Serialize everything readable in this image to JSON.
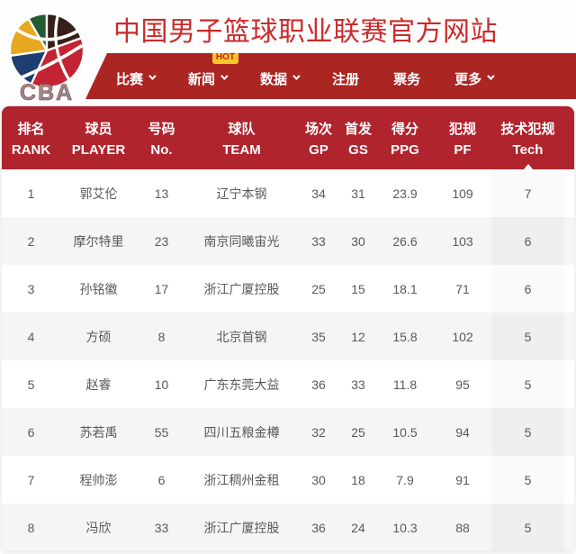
{
  "header": {
    "logo_text": "CBA",
    "title": "中国男子篮球职业联赛官方网站"
  },
  "nav": {
    "items": [
      {
        "label": "比赛",
        "has_dropdown": true
      },
      {
        "label": "新闻",
        "has_dropdown": true,
        "badge": "HOT"
      },
      {
        "label": "数据",
        "has_dropdown": true
      },
      {
        "label": "注册",
        "has_dropdown": false
      },
      {
        "label": "票务",
        "has_dropdown": false
      },
      {
        "label": "更多",
        "has_dropdown": true
      }
    ]
  },
  "table": {
    "columns": [
      {
        "zh": "排名",
        "en": "RANK",
        "key": "rank",
        "sorted": false
      },
      {
        "zh": "球员",
        "en": "PLAYER",
        "key": "player",
        "sorted": false
      },
      {
        "zh": "号码",
        "en": "No.",
        "key": "no",
        "sorted": false
      },
      {
        "zh": "球队",
        "en": "TEAM",
        "key": "team",
        "sorted": false
      },
      {
        "zh": "场次",
        "en": "GP",
        "key": "gp",
        "sorted": false
      },
      {
        "zh": "首发",
        "en": "GS",
        "key": "gs",
        "sorted": false
      },
      {
        "zh": "得分",
        "en": "PPG",
        "key": "ppg",
        "sorted": false
      },
      {
        "zh": "犯规",
        "en": "PF",
        "key": "pf",
        "sorted": false
      },
      {
        "zh": "技术犯规",
        "en": "Tech",
        "key": "tech",
        "sorted": true
      }
    ],
    "rows": [
      [
        "1",
        "郭艾伦",
        "13",
        "辽宁本钢",
        "34",
        "31",
        "23.9",
        "109",
        "7"
      ],
      [
        "2",
        "摩尔特里",
        "23",
        "南京同曦宙光",
        "33",
        "30",
        "26.6",
        "103",
        "6"
      ],
      [
        "3",
        "孙铭徽",
        "17",
        "浙江广厦控股",
        "25",
        "15",
        "18.1",
        "71",
        "6"
      ],
      [
        "4",
        "方硕",
        "8",
        "北京首钢",
        "35",
        "12",
        "15.8",
        "102",
        "5"
      ],
      [
        "5",
        "赵睿",
        "10",
        "广东东莞大益",
        "36",
        "33",
        "11.8",
        "95",
        "5"
      ],
      [
        "6",
        "苏若禹",
        "55",
        "四川五粮金樽",
        "32",
        "25",
        "10.5",
        "94",
        "5"
      ],
      [
        "7",
        "程帅澎",
        "6",
        "浙江稠州金租",
        "30",
        "18",
        "7.9",
        "91",
        "5"
      ],
      [
        "8",
        "冯欣",
        "33",
        "浙江广厦控股",
        "36",
        "24",
        "10.3",
        "88",
        "5"
      ]
    ]
  },
  "colors": {
    "title_red": "#cb2b2b",
    "nav_red": "#ab2523",
    "table_header_red": "#b0242e",
    "hot_badge_bg": "#fdc52c",
    "hot_badge_text": "#c5211f",
    "row_alt_bg": "#f5f5f5",
    "cell_text": "#595959",
    "logo_red": "#c22433",
    "logo_green": "#235c33",
    "logo_brown": "#36201a",
    "logo_blue": "#1c3e70",
    "logo_yellow": "#e7a81f"
  }
}
